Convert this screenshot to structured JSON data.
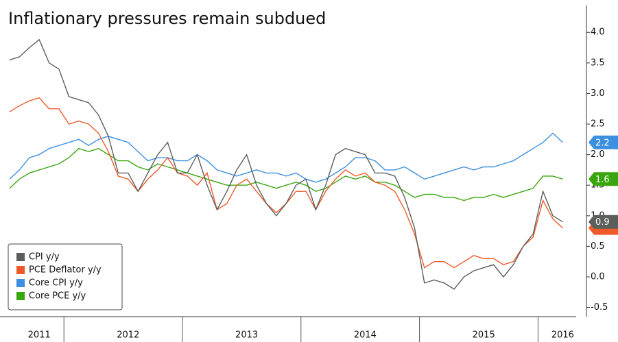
{
  "chart_data": {
    "type": "line",
    "title": "Inflationary pressures remain subdued",
    "categories": [
      null,
      null,
      null,
      "2011",
      null,
      null,
      null,
      null,
      null,
      null,
      null,
      null,
      "2012",
      null,
      null,
      null,
      null,
      null,
      null,
      null,
      null,
      null,
      null,
      null,
      "2013",
      null,
      null,
      null,
      null,
      null,
      null,
      null,
      null,
      null,
      null,
      null,
      "2014",
      null,
      null,
      null,
      null,
      null,
      null,
      null,
      null,
      null,
      null,
      null,
      "2015",
      null,
      null,
      null,
      null,
      null,
      null,
      null,
      "2016"
    ],
    "series": [
      {
        "name": "CPI y/y",
        "color": "#5a5f5c",
        "values": [
          3.55,
          3.6,
          3.75,
          3.88,
          3.5,
          3.4,
          2.95,
          2.9,
          2.85,
          2.65,
          2.3,
          1.7,
          1.7,
          1.4,
          1.7,
          2.0,
          2.2,
          1.7,
          1.7,
          2.0,
          1.5,
          1.1,
          1.4,
          1.75,
          2.0,
          1.5,
          1.2,
          1.0,
          1.2,
          1.5,
          1.6,
          1.1,
          1.5,
          2.0,
          2.1,
          2.05,
          2.0,
          1.7,
          1.7,
          1.65,
          1.3,
          0.8,
          -0.1,
          -0.05,
          -0.1,
          -0.2,
          0.0,
          0.1,
          0.15,
          0.2,
          0.0,
          0.2,
          0.5,
          0.7,
          1.4,
          1.0,
          0.9
        ]
      },
      {
        "name": "PCE Deflator y/y",
        "color": "#f05a28",
        "values": [
          2.7,
          2.8,
          2.88,
          2.93,
          2.75,
          2.75,
          2.5,
          2.55,
          2.5,
          2.35,
          2.05,
          1.65,
          1.6,
          1.4,
          1.6,
          1.75,
          1.95,
          1.7,
          1.65,
          1.5,
          1.7,
          1.1,
          1.2,
          1.5,
          1.6,
          1.4,
          1.2,
          1.05,
          1.2,
          1.4,
          1.4,
          1.1,
          1.4,
          1.6,
          1.75,
          1.65,
          1.7,
          1.55,
          1.5,
          1.4,
          1.1,
          0.7,
          0.15,
          0.25,
          0.25,
          0.15,
          0.25,
          0.35,
          0.3,
          0.3,
          0.2,
          0.25,
          0.5,
          0.65,
          1.25,
          0.95,
          0.8
        ]
      },
      {
        "name": "Core CPI y/y",
        "color": "#3d8fe0",
        "values": [
          1.6,
          1.75,
          1.95,
          2.0,
          2.1,
          2.15,
          2.2,
          2.25,
          2.15,
          2.25,
          2.3,
          2.25,
          2.2,
          2.05,
          1.9,
          1.95,
          1.95,
          1.9,
          1.9,
          2.0,
          1.9,
          1.75,
          1.7,
          1.65,
          1.7,
          1.75,
          1.7,
          1.7,
          1.65,
          1.7,
          1.6,
          1.55,
          1.6,
          1.7,
          1.8,
          1.95,
          1.95,
          1.9,
          1.75,
          1.75,
          1.8,
          1.7,
          1.6,
          1.65,
          1.7,
          1.75,
          1.8,
          1.75,
          1.8,
          1.8,
          1.85,
          1.9,
          2.0,
          2.1,
          2.2,
          2.35,
          2.2
        ]
      },
      {
        "name": "Core PCE y/y",
        "color": "#3aa60f",
        "values": [
          1.45,
          1.6,
          1.7,
          1.75,
          1.8,
          1.85,
          1.95,
          2.1,
          2.05,
          2.1,
          2.0,
          1.9,
          1.9,
          1.8,
          1.75,
          1.85,
          1.8,
          1.75,
          1.7,
          1.65,
          1.6,
          1.55,
          1.5,
          1.5,
          1.5,
          1.55,
          1.5,
          1.45,
          1.5,
          1.55,
          1.5,
          1.4,
          1.45,
          1.55,
          1.65,
          1.6,
          1.65,
          1.55,
          1.55,
          1.5,
          1.4,
          1.3,
          1.35,
          1.35,
          1.3,
          1.3,
          1.25,
          1.3,
          1.3,
          1.35,
          1.3,
          1.35,
          1.4,
          1.45,
          1.65,
          1.65,
          1.6
        ]
      }
    ],
    "ylim": [
      -0.65,
      4.44
    ],
    "yticks": [
      -0.5,
      {
        "value": 0,
        "label": "0.0"
      },
      0.5,
      {
        "value": 1,
        "label": "1.0"
      },
      1.5,
      {
        "value": 2,
        "label": "2.0"
      },
      2.5,
      {
        "value": 3,
        "label": "3.0"
      },
      3.5,
      {
        "value": 4,
        "label": "4.0"
      }
    ],
    "legend": "lower left"
  }
}
